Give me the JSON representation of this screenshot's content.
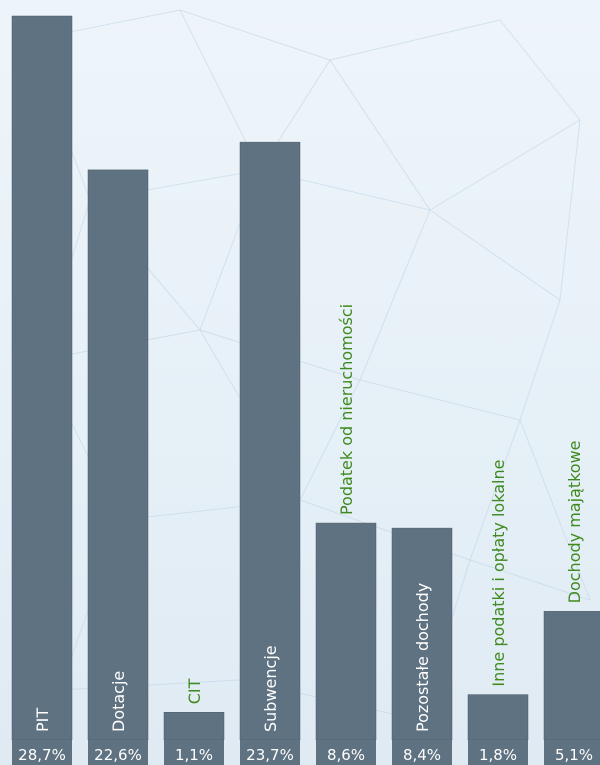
{
  "chart_data": {
    "type": "bar",
    "categories": [
      "PIT",
      "Dotacje",
      "CIT",
      "Subwencje",
      "Podatek od nieruchomości",
      "Pozostałe dochody",
      "Inne podatki i opłaty lokalne",
      "Dochody majątkowe"
    ],
    "values": [
      28.7,
      22.6,
      1.1,
      23.7,
      8.6,
      8.4,
      1.8,
      5.1
    ],
    "value_labels": [
      "28,7%",
      "22,6%",
      "1,1%",
      "23,7%",
      "8,6%",
      "8,4%",
      "1,8%",
      "5,1%"
    ],
    "label_placement": [
      "inside",
      "inside",
      "above",
      "inside",
      "above",
      "inside",
      "above",
      "above"
    ],
    "title": "",
    "xlabel": "",
    "ylabel": "",
    "grid": false,
    "legend": "none"
  },
  "colors": {
    "bar": "#5f7281",
    "bar_stroke": "#4c5d6b",
    "label_inside": "#ffffff",
    "label_above": "#3f8a1f",
    "value_text": "#ffffff",
    "background": "#e8f1f8"
  }
}
